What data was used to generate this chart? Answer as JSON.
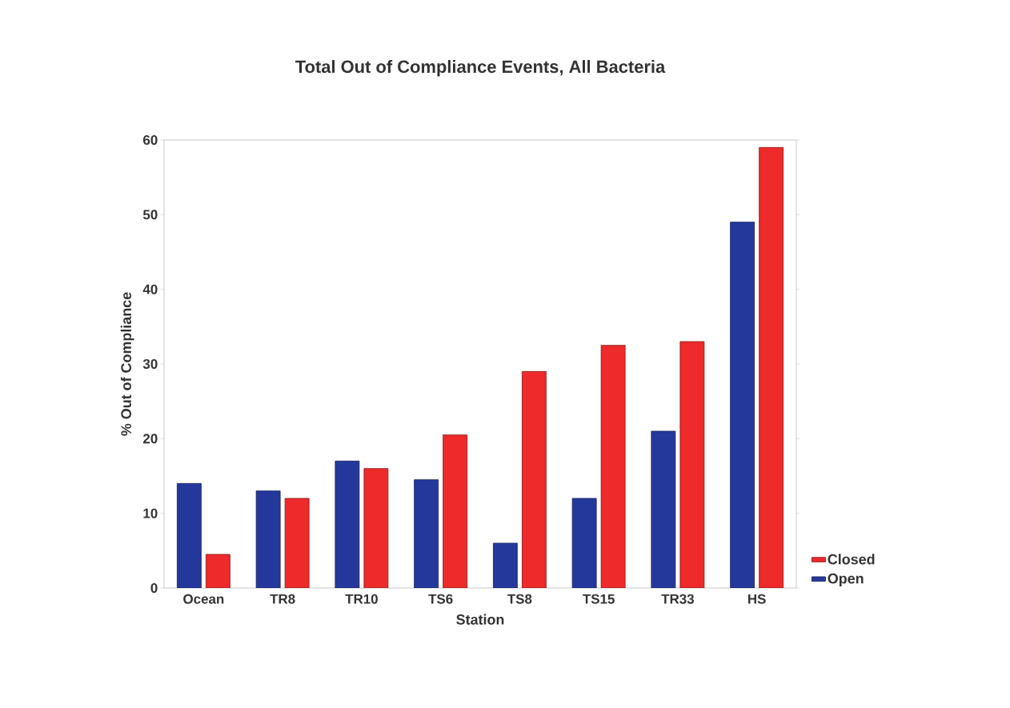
{
  "chart_data": {
    "type": "bar",
    "title": "Total Out of Compliance Events, All Bacteria",
    "xlabel": "Station",
    "ylabel": "% Out of Compliance",
    "categories": [
      "Ocean",
      "TR8",
      "TR10",
      "TS6",
      "TS8",
      "TS15",
      "TR33",
      "HS"
    ],
    "series": [
      {
        "name": "Open",
        "color": "#24389c",
        "values": [
          14,
          13,
          17,
          14.5,
          6,
          12,
          21,
          49
        ]
      },
      {
        "name": "Closed",
        "color": "#ee2a2a",
        "values": [
          4.5,
          12,
          16,
          20.5,
          29,
          32.5,
          33,
          59
        ]
      }
    ],
    "ylim": [
      0,
      60
    ],
    "yticks": [
      0,
      10,
      20,
      30,
      40,
      50,
      60
    ],
    "legend": "bottom right"
  }
}
